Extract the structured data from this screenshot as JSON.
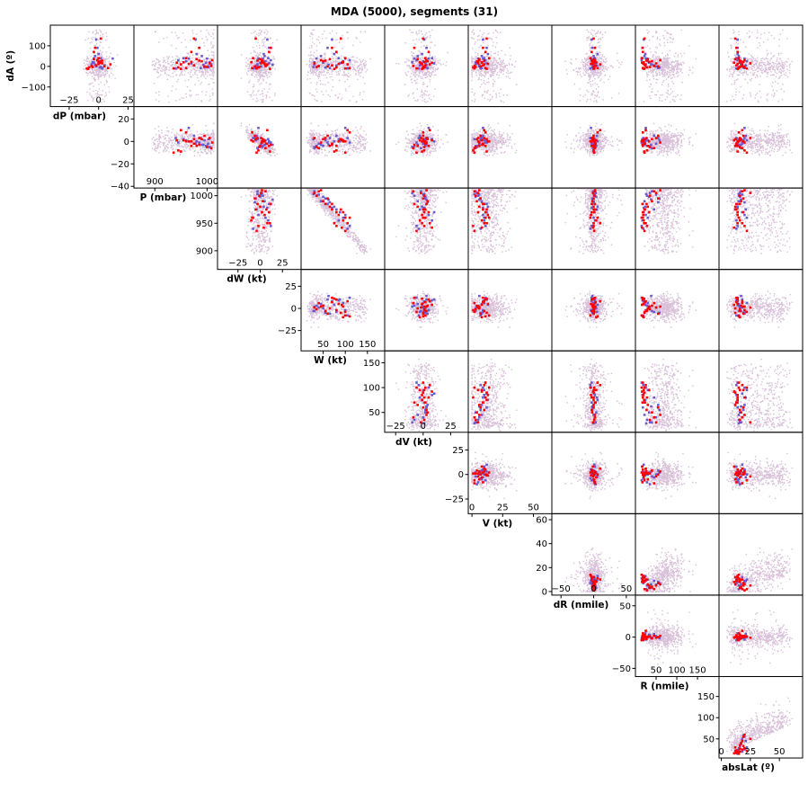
{
  "chart_data": {
    "type": "scatter",
    "title": "MDA (5000), segments (31)",
    "layout": "upper-triangular scatter matrix",
    "grid": false,
    "colors": {
      "background_points": "#d8bfd8",
      "segment_points_blue": "#6a5acd",
      "segment_points_red": "#ff0000",
      "axes": "#000000"
    },
    "row_variables": [
      "dA",
      "dP",
      "P",
      "dW",
      "W",
      "dV",
      "V",
      "dR",
      "R"
    ],
    "column_variables": [
      "dP",
      "P",
      "dW",
      "W",
      "dV",
      "V",
      "dR",
      "R",
      "absLat"
    ],
    "variables": {
      "dA": {
        "label": "dA (º)",
        "yrange": [
          -195,
          200
        ],
        "ticks": [
          -100,
          0,
          100
        ]
      },
      "dP": {
        "label": "dP (mbar)",
        "xrange": [
          -41,
          30
        ],
        "yrange": [
          -41.5,
          31
        ],
        "xticks": [
          -25,
          0,
          25
        ],
        "yticks": [
          -40,
          -20,
          0,
          20
        ]
      },
      "P": {
        "label": "P (mbar)",
        "xrange": [
          860,
          1020
        ],
        "yrange": [
          866,
          1014
        ],
        "xticks": [
          900,
          1000
        ],
        "yticks": [
          900,
          950,
          1000
        ]
      },
      "dW": {
        "label": "dW (kt)",
        "xrange": [
          -48,
          46
        ],
        "yrange": [
          -48,
          44
        ],
        "xticks": [
          -25,
          0,
          25
        ],
        "yticks": [
          -25,
          0,
          25
        ]
      },
      "W": {
        "label": "W (kt)",
        "xrange": [
          0,
          189
        ],
        "yrange": [
          10,
          174
        ],
        "xticks": [
          50,
          100,
          150
        ],
        "yticks": [
          50,
          100,
          150
        ]
      },
      "dV": {
        "label": "dV (kt)",
        "xrange": [
          -35,
          41
        ],
        "yrange": [
          -40,
          43
        ],
        "xticks": [
          -25,
          0,
          25
        ],
        "yticks": [
          -25,
          0,
          25
        ]
      },
      "V": {
        "label": "V (kt)",
        "xrange": [
          -3,
          65
        ],
        "yrange": [
          -3,
          65
        ],
        "xticks": [
          0,
          25,
          50
        ],
        "yticks": [
          0,
          20,
          40,
          60
        ]
      },
      "dR": {
        "label": "dR (nmile)",
        "xrange": [
          -64,
          64
        ],
        "yrange": [
          -63,
          67
        ],
        "xticks": [
          -50,
          0,
          50
        ],
        "yticks": [
          -50,
          0,
          50
        ]
      },
      "R": {
        "label": "R (nmile)",
        "xrange": [
          0,
          202
        ],
        "yrange": [
          5,
          197
        ],
        "xticks": [
          50,
          100,
          150
        ],
        "yticks": [
          50,
          100,
          150
        ]
      },
      "absLat": {
        "label": "absLat (º)",
        "xrange": [
          -2,
          70
        ],
        "xticks": [
          0,
          25,
          50
        ]
      }
    },
    "point_fields": [
      "dA",
      "dP",
      "P",
      "dW",
      "W",
      "dV",
      "V",
      "dR",
      "R",
      "absLat"
    ],
    "segment_points_blue": [
      [
        130,
        -2,
        978,
        8,
        70,
        1,
        9,
        -3,
        20,
        14
      ],
      [
        90,
        -1,
        985,
        10,
        60,
        3,
        12,
        -2,
        18,
        14
      ],
      [
        50,
        -3,
        990,
        5,
        45,
        -5,
        8,
        0,
        22,
        15
      ],
      [
        38,
        -4,
        1000,
        3,
        35,
        -8,
        5,
        1,
        28,
        15
      ],
      [
        20,
        -5,
        1005,
        2,
        30,
        -10,
        4,
        3,
        35,
        16
      ],
      [
        10,
        -6,
        1008,
        -3,
        30,
        -2,
        3,
        -1,
        40,
        17
      ],
      [
        0,
        -2,
        1002,
        1,
        40,
        0,
        6,
        2,
        50,
        18
      ],
      [
        -5,
        1,
        995,
        -5,
        55,
        2,
        7,
        -2,
        58,
        19
      ],
      [
        -8,
        3,
        988,
        -6,
        65,
        4,
        8,
        0,
        55,
        20
      ],
      [
        5,
        5,
        975,
        -4,
        80,
        -3,
        9,
        5,
        45,
        21
      ],
      [
        25,
        1,
        960,
        6,
        95,
        0,
        10,
        0,
        30,
        22
      ],
      [
        38,
        12,
        965,
        -2,
        100,
        5,
        9,
        -4,
        25,
        20
      ],
      [
        15,
        0,
        970,
        10,
        88,
        10,
        12,
        1,
        20,
        18
      ],
      [
        30,
        -1,
        945,
        12,
        110,
        -6,
        11,
        -3,
        15,
        14
      ],
      [
        40,
        2,
        955,
        9,
        85,
        8,
        10,
        2,
        17,
        13
      ],
      [
        -10,
        3,
        940,
        -8,
        105,
        -4,
        7,
        -5,
        19,
        13
      ],
      [
        18,
        -4,
        998,
        0,
        50,
        2,
        3,
        4,
        33,
        16
      ],
      [
        -3,
        2,
        1003,
        -3,
        28,
        1,
        2,
        0,
        26,
        15
      ],
      [
        60,
        0,
        980,
        4,
        75,
        -1,
        13,
        6,
        24,
        14
      ],
      [
        8,
        -3,
        993,
        14,
        62,
        3,
        6,
        -2,
        38,
        17
      ]
    ],
    "segment_points_red": [
      [
        135,
        2,
        975,
        -5,
        90,
        0,
        12,
        0,
        22,
        12
      ],
      [
        90,
        -3,
        985,
        12,
        70,
        -8,
        9,
        2,
        17,
        13
      ],
      [
        70,
        -4,
        970,
        10,
        80,
        5,
        11,
        -3,
        18,
        14
      ],
      [
        40,
        0,
        960,
        -8,
        100,
        2,
        14,
        -5,
        15,
        15
      ],
      [
        20,
        1,
        955,
        -10,
        95,
        -3,
        8,
        4,
        20,
        16
      ],
      [
        10,
        10,
        950,
        8,
        105,
        6,
        10,
        10,
        25,
        18
      ],
      [
        -5,
        -8,
        945,
        -2,
        80,
        1,
        1,
        0,
        28,
        20
      ],
      [
        -10,
        -10,
        936,
        -4,
        100,
        -6,
        2,
        1,
        22,
        22
      ],
      [
        15,
        3,
        1005,
        1,
        30,
        -2,
        5,
        -1,
        50,
        25
      ],
      [
        30,
        -1,
        1010,
        2,
        45,
        3,
        6,
        2,
        60,
        20
      ],
      [
        0,
        5,
        995,
        -6,
        60,
        0,
        7,
        0,
        55,
        19
      ],
      [
        25,
        2,
        990,
        3,
        50,
        4,
        4,
        -2,
        40,
        17
      ],
      [
        -3,
        -5,
        1000,
        -1,
        35,
        1,
        3,
        1,
        35,
        16
      ],
      [
        12,
        0,
        965,
        5,
        85,
        -1,
        13,
        -4,
        19,
        14
      ],
      [
        5,
        -2,
        975,
        7,
        70,
        2,
        9,
        3,
        23,
        13
      ],
      [
        35,
        -4,
        980,
        0,
        65,
        -5,
        6,
        0,
        30,
        12
      ],
      [
        -8,
        8,
        960,
        -9,
        110,
        0,
        11,
        6,
        18,
        15
      ],
      [
        18,
        1,
        942,
        4,
        92,
        8,
        8,
        -1,
        16,
        11
      ],
      [
        2,
        -6,
        1008,
        6,
        40,
        -9,
        2,
        2,
        45,
        18
      ],
      [
        28,
        3,
        985,
        -3,
        55,
        3,
        10,
        -3,
        27,
        16
      ],
      [
        -12,
        -9,
        950,
        11,
        75,
        -1,
        12,
        0,
        21,
        14
      ],
      [
        22,
        0,
        970,
        2,
        95,
        1,
        5,
        1,
        33,
        19
      ]
    ]
  }
}
